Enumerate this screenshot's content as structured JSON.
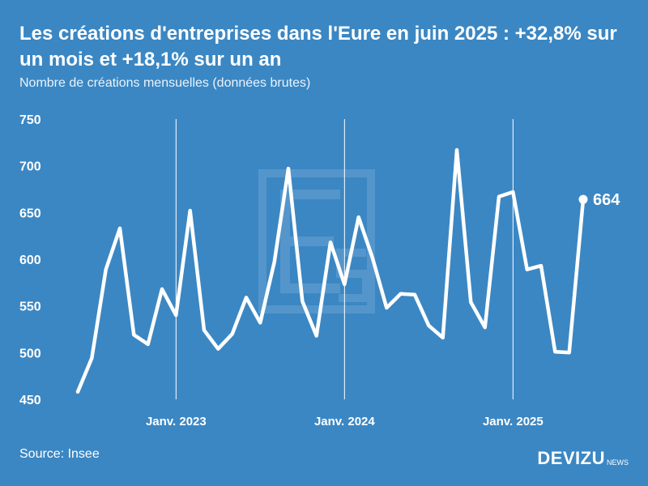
{
  "header": {
    "title": "Les créations d'entreprises dans l'Eure en juin 2025 : +32,8% sur un mois et +18,1% sur un an",
    "subtitle": "Nombre de créations mensuelles (données brutes)"
  },
  "footer": {
    "source": "Source: Insee",
    "brand": "DEVIZU",
    "brand_suffix": "NEWS"
  },
  "colors": {
    "background": "#3b87c3",
    "line": "#ffffff",
    "watermark": "#6aa3d2"
  },
  "watermark_icon": "es-logo-icon",
  "chart_data": {
    "type": "line",
    "title": "Les créations d'entreprises dans l'Eure en juin 2025 : +32,8% sur un mois et +18,1% sur un an",
    "subtitle": "Nombre de créations mensuelles (données brutes)",
    "xlabel": "",
    "ylabel": "",
    "ylim": [
      450,
      750
    ],
    "yticks": [
      450,
      500,
      550,
      600,
      650,
      700,
      750
    ],
    "x_start": "2022-06",
    "x_end": "2025-06",
    "xtick_labels": [
      {
        "month": "2023-01",
        "label": "Janv. 2023"
      },
      {
        "month": "2024-01",
        "label": "Janv. 2024"
      },
      {
        "month": "2025-01",
        "label": "Janv. 2025"
      }
    ],
    "grid": "vertical lines at January",
    "series": [
      {
        "values": [
          {
            "month": "2022-06",
            "value": 458
          },
          {
            "month": "2022-07",
            "value": 494
          },
          {
            "month": "2022-08",
            "value": 589
          },
          {
            "month": "2022-09",
            "value": 633
          },
          {
            "month": "2022-10",
            "value": 519
          },
          {
            "month": "2022-11",
            "value": 509
          },
          {
            "month": "2022-12",
            "value": 568
          },
          {
            "month": "2023-01",
            "value": 540
          },
          {
            "month": "2023-02",
            "value": 652
          },
          {
            "month": "2023-03",
            "value": 524
          },
          {
            "month": "2023-04",
            "value": 504
          },
          {
            "month": "2023-05",
            "value": 520
          },
          {
            "month": "2023-06",
            "value": 559
          },
          {
            "month": "2023-07",
            "value": 532
          },
          {
            "month": "2023-08",
            "value": 597
          },
          {
            "month": "2023-09",
            "value": 697
          },
          {
            "month": "2023-10",
            "value": 555
          },
          {
            "month": "2023-11",
            "value": 518
          },
          {
            "month": "2023-12",
            "value": 618
          },
          {
            "month": "2024-01",
            "value": 573
          },
          {
            "month": "2024-02",
            "value": 645
          },
          {
            "month": "2024-03",
            "value": 601
          },
          {
            "month": "2024-04",
            "value": 548
          },
          {
            "month": "2024-05",
            "value": 563
          },
          {
            "month": "2024-06",
            "value": 562
          },
          {
            "month": "2024-07",
            "value": 529
          },
          {
            "month": "2024-08",
            "value": 516
          },
          {
            "month": "2024-09",
            "value": 717
          },
          {
            "month": "2024-10",
            "value": 554
          },
          {
            "month": "2024-11",
            "value": 527
          },
          {
            "month": "2024-12",
            "value": 667
          },
          {
            "month": "2025-01",
            "value": 672
          },
          {
            "month": "2025-02",
            "value": 589
          },
          {
            "month": "2025-03",
            "value": 593
          },
          {
            "month": "2025-04",
            "value": 501
          },
          {
            "month": "2025-05",
            "value": 500
          },
          {
            "month": "2025-06",
            "value": 664
          }
        ]
      }
    ],
    "last_point_label": "664"
  }
}
